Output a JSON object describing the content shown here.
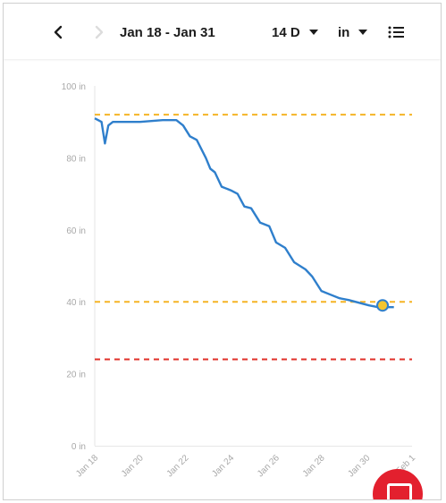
{
  "toolbar": {
    "back_icon": "chevron-left-icon",
    "forward_icon": "chevron-right-icon",
    "date_range": "Jan 18 - Jan 31",
    "span_label": "14 D",
    "unit_label": "in",
    "list_icon": "list-icon"
  },
  "colors": {
    "line": "#2f7fcc",
    "threshold_warning": "#f5b425",
    "threshold_critical": "#e0302a",
    "current_point": "#f5c530",
    "fab": "#e3202e"
  },
  "chart_data": {
    "type": "line",
    "y_ticks": [
      "100 in",
      "80 in",
      "60 in",
      "40 in",
      "20 in",
      "0 in"
    ],
    "x_ticks": [
      "Jan 18",
      "Jan 20",
      "Jan 22",
      "Jan 24",
      "Jan 26",
      "Jan 28",
      "Jan 30",
      "Feb 1"
    ],
    "ylim": [
      0,
      100
    ],
    "xlim": [
      0,
      14
    ],
    "threshold_lines": [
      {
        "value": 92,
        "color": "#f5b425"
      },
      {
        "value": 40,
        "color": "#f5b425"
      },
      {
        "value": 24,
        "color": "#e0302a"
      }
    ],
    "series": [
      {
        "x": [
          0,
          0.3,
          0.45,
          0.6,
          0.8,
          1.0,
          2.0,
          3.0,
          3.6,
          3.9,
          4.2,
          4.5,
          4.9,
          5.1,
          5.3,
          5.6,
          6.0,
          6.3,
          6.6,
          6.9,
          7.3,
          7.7,
          8.0,
          8.4,
          8.8,
          9.3,
          9.6,
          10.0,
          10.4,
          10.8,
          11.2,
          11.5,
          11.8,
          12.1,
          12.5,
          12.9,
          13.2
        ],
        "y": [
          91,
          90,
          84,
          89,
          90,
          90,
          90,
          90.5,
          90.5,
          89,
          86,
          85,
          80,
          77,
          76,
          72,
          71,
          70,
          66.5,
          66,
          62,
          61,
          56.5,
          55,
          51,
          49,
          47,
          43,
          42,
          41,
          40.5,
          40,
          39.5,
          39,
          38.5,
          38.5,
          38.5
        ]
      }
    ],
    "current_point": {
      "x": 12.7,
      "y": 39
    }
  }
}
